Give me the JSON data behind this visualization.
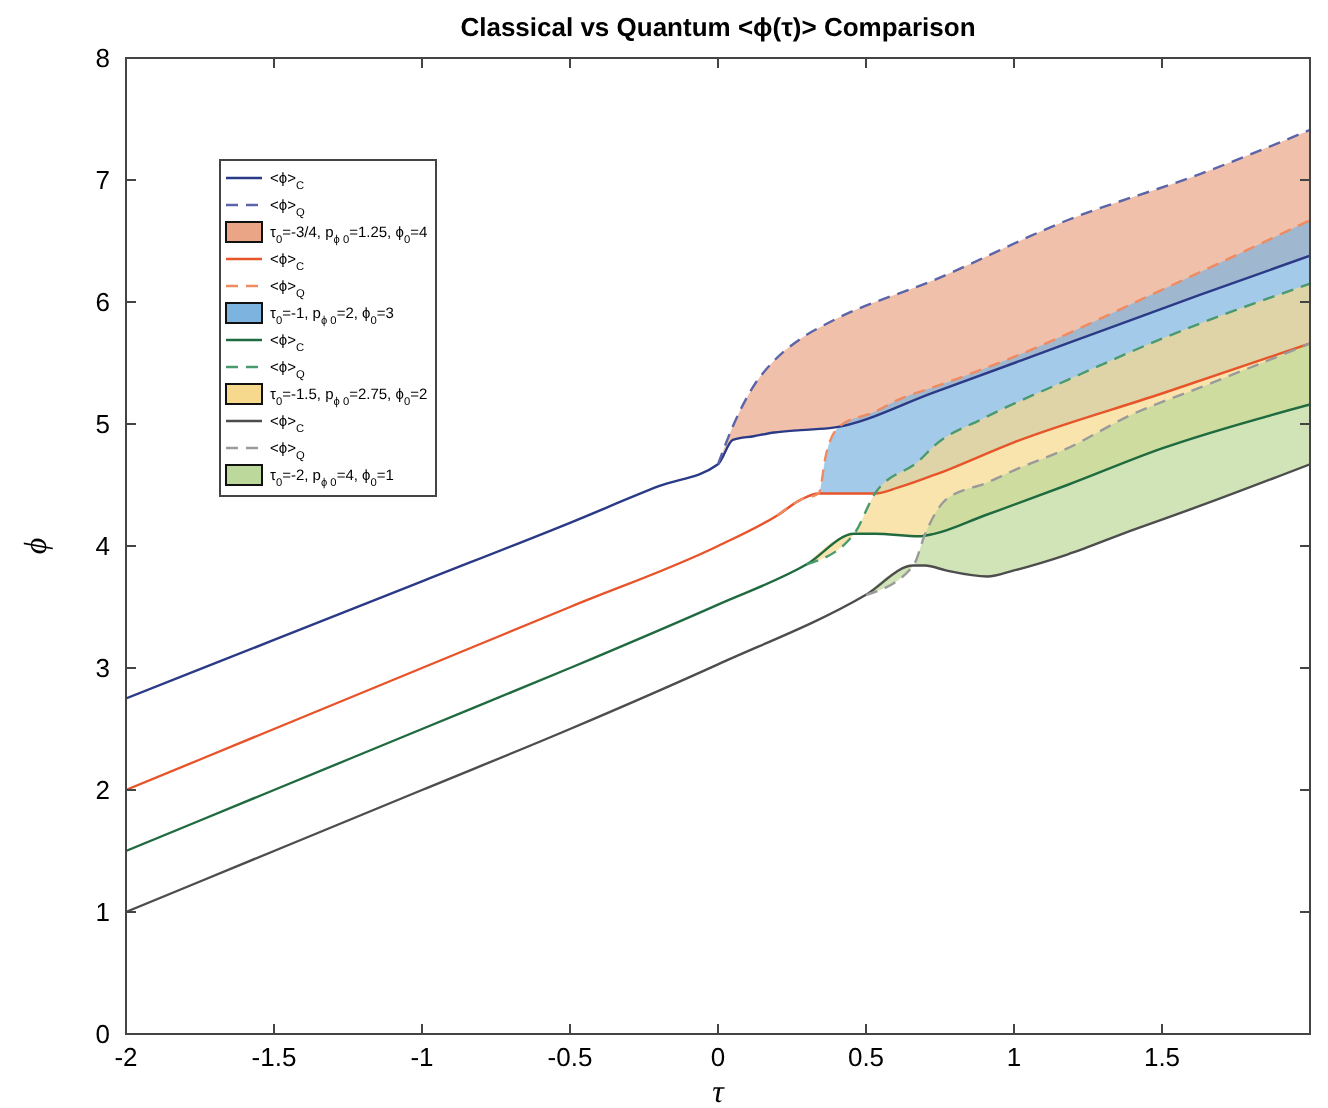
{
  "chart_data": {
    "type": "line",
    "title": "Classical vs Quantum <ϕ(τ)> Comparison",
    "xlabel": "τ",
    "ylabel": "ϕ",
    "xlim": [
      -2,
      2
    ],
    "ylim": [
      0,
      8
    ],
    "xticks": [
      -2,
      -1.5,
      -1,
      -0.5,
      0,
      0.5,
      1,
      1.5
    ],
    "yticks": [
      0,
      1,
      2,
      3,
      4,
      5,
      6,
      7,
      8
    ],
    "grid": false,
    "legend": "top left",
    "series": [
      {
        "name": "<ϕ>$_{C}$",
        "type": "line",
        "line_style": "solid",
        "color": "#2b3a86",
        "x": [
          -2,
          -1.5,
          -1,
          -0.5,
          -0.2,
          0,
          0.05,
          0.12,
          0.19,
          0.28,
          0.39,
          0.73,
          1.18,
          1.63,
          2
        ],
        "values": [
          2.75,
          3.23,
          3.71,
          4.19,
          4.49,
          4.67,
          4.87,
          4.9,
          4.93,
          4.95,
          4.97,
          5.26,
          5.66,
          6.06,
          6.38
        ]
      },
      {
        "name": "<ϕ>$_{Q}$",
        "type": "line",
        "line_style": "dashed",
        "color": "#5b64a8",
        "x": [
          0,
          0.05,
          0.12,
          0.19,
          0.28,
          0.39,
          0.73,
          1.18,
          1.63,
          2
        ],
        "values": [
          4.67,
          4.98,
          5.31,
          5.52,
          5.7,
          5.85,
          6.18,
          6.67,
          7.05,
          7.41
        ],
        "lower": [
          4.67,
          4.87,
          4.9,
          4.93,
          4.95,
          4.97,
          5.26,
          5.66,
          6.06,
          6.38
        ],
        "upper": [
          4.67,
          4.98,
          5.31,
          5.52,
          5.7,
          5.85,
          6.18,
          6.67,
          7.05,
          7.41
        ]
      },
      {
        "name": "τ$_{0}$=-3/4, p$_{ϕ 0}$=1.25, ϕ$_{0}$=4",
        "type": "area",
        "color": "#e9a586"
      },
      {
        "name": "<ϕ>$_{C}$",
        "type": "line",
        "line_style": "solid",
        "color": "#e8542a",
        "x": [
          -2,
          -1.5,
          -1,
          -0.5,
          0,
          0.2,
          0.28,
          0.34,
          0.365,
          0.41,
          0.53,
          0.61,
          0.75,
          1,
          1.5,
          2
        ],
        "values": [
          2,
          2.5,
          3,
          3.5,
          4,
          4.25,
          4.38,
          4.43,
          4.43,
          4.43,
          4.43,
          4.48,
          4.6,
          4.85,
          5.25,
          5.66
        ]
      },
      {
        "name": "<ϕ>$_{Q}$",
        "type": "line",
        "line_style": "dashed",
        "color": "#f08a60",
        "x": [
          0.2,
          0.28,
          0.34,
          0.365,
          0.41,
          0.53,
          0.61,
          0.75,
          1,
          1.5,
          2
        ],
        "values": [
          4.25,
          4.38,
          4.43,
          4.75,
          4.98,
          5.1,
          5.2,
          5.32,
          5.55,
          6.1,
          6.67
        ],
        "lower": [
          4.25,
          4.38,
          4.43,
          4.43,
          4.43,
          4.43,
          4.48,
          4.6,
          4.85,
          5.25,
          5.66
        ],
        "upper": [
          4.25,
          4.38,
          4.43,
          4.75,
          4.98,
          5.1,
          5.2,
          5.32,
          5.55,
          6.1,
          6.67
        ]
      },
      {
        "name": "τ$_{0}$=-1, p$_{ϕ 0}$=2, ϕ$_{0}$=3",
        "type": "area",
        "color": "#7db4df"
      },
      {
        "name": "<ϕ>$_{C}$",
        "type": "line",
        "line_style": "solid",
        "color": "#1f6b3f",
        "x": [
          -2,
          -1.5,
          -1,
          -0.5,
          0,
          0.3,
          0.46,
          0.53,
          0.68,
          0.73,
          0.9,
          1.18,
          1.5,
          2
        ],
        "values": [
          1.5,
          2,
          2.5,
          3,
          3.52,
          3.85,
          4.1,
          4.1,
          4.08,
          4.1,
          4.25,
          4.5,
          4.8,
          5.16
        ]
      },
      {
        "name": "<ϕ>$_{Q}$",
        "type": "line",
        "line_style": "dashed",
        "color": "#4a9a70",
        "x": [
          0.3,
          0.46,
          0.53,
          0.68,
          0.73,
          0.9,
          1.18,
          1.5,
          2
        ],
        "values": [
          3.85,
          4.1,
          4.43,
          4.7,
          4.82,
          5.05,
          5.36,
          5.7,
          6.15
        ],
        "lower": [
          3.85,
          4.1,
          4.1,
          4.08,
          4.1,
          4.25,
          4.5,
          4.8,
          5.16
        ],
        "upper": [
          3.85,
          4.1,
          4.43,
          4.7,
          4.82,
          5.05,
          5.36,
          5.7,
          6.15
        ]
      },
      {
        "name": "τ$_{0}$=-1.5, p$_{ϕ 0}$=2.75, ϕ$_{0}$=2",
        "type": "area",
        "color": "#f6d98c"
      },
      {
        "name": "<ϕ>$_{C}$",
        "type": "line",
        "line_style": "solid",
        "color": "#4d4d4d",
        "x": [
          -2,
          -1.5,
          -1,
          -0.5,
          0,
          0.5,
          0.66,
          0.7,
          0.77,
          0.91,
          1,
          1.18,
          1.4,
          1.63,
          2
        ],
        "values": [
          1,
          1.5,
          2,
          2.5,
          3.03,
          3.6,
          3.84,
          3.84,
          3.8,
          3.75,
          3.8,
          3.93,
          4.13,
          4.33,
          4.67
        ]
      },
      {
        "name": "<ϕ>$_{Q}$",
        "type": "line",
        "line_style": "dashed",
        "color": "#9a9a9a",
        "x": [
          0.5,
          0.66,
          0.7,
          0.77,
          0.91,
          1,
          1.18,
          1.4,
          1.63,
          2
        ],
        "values": [
          3.6,
          3.84,
          4.1,
          4.38,
          4.52,
          4.62,
          4.8,
          5.08,
          5.3,
          5.66
        ],
        "lower": [
          3.6,
          3.84,
          3.84,
          3.8,
          3.75,
          3.8,
          3.93,
          4.13,
          4.33,
          4.67
        ],
        "upper": [
          3.6,
          3.84,
          4.1,
          4.38,
          4.52,
          4.62,
          4.8,
          5.08,
          5.3,
          5.66
        ]
      },
      {
        "name": "τ$_{0}$=-2, p$_{ϕ 0}$=4, ϕ$_{0}$=1",
        "type": "area",
        "color": "#bcd89a"
      }
    ]
  }
}
